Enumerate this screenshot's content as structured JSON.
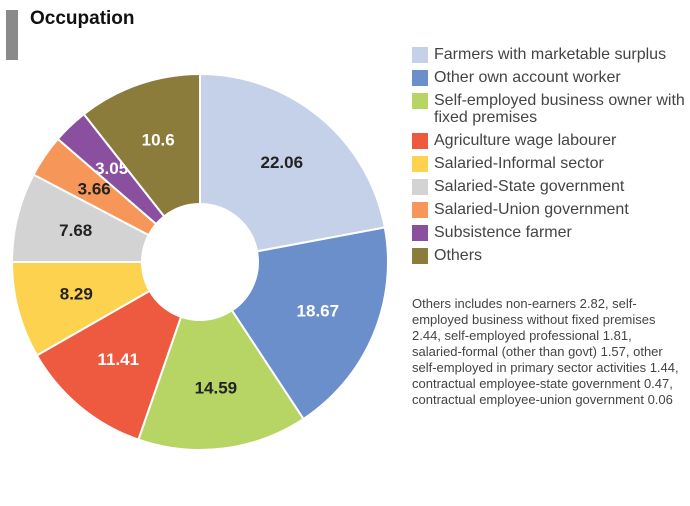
{
  "chart_data": {
    "type": "donut",
    "title": "Occupation",
    "categories": [
      "Farmers with marketable surplus",
      "Other own account worker",
      "Self-employed business owner with fixed premises",
      "Agriculture wage labourer",
      "Salaried-Informal sector",
      "Salaried-State government",
      "Salaried-Union government",
      "Subsistence farmer",
      "Others"
    ],
    "values": [
      22.06,
      18.67,
      14.59,
      11.41,
      8.29,
      7.68,
      3.66,
      3.05,
      10.6
    ],
    "colors": [
      "#c5d0e9",
      "#6b8fca",
      "#b7d564",
      "#ee5a3f",
      "#fdd24e",
      "#d3d3d3",
      "#f79659",
      "#8b4f9f",
      "#8b7c3b"
    ],
    "annotation": "Others includes non-earners 2.82, self-employed business without fixed premises 2.44, self-employed professional 1.81, salaried-formal (other than govt) 1.57, other self-employed in primary sector activities 1.44, contractual employee-state government 0.47, contractual employee-union government 0.06"
  }
}
